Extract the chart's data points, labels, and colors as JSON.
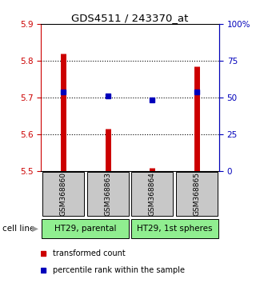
{
  "title": "GDS4511 / 243370_at",
  "samples": [
    "GSM368860",
    "GSM368863",
    "GSM368864",
    "GSM368865"
  ],
  "red_values": [
    5.82,
    5.615,
    5.51,
    5.785
  ],
  "blue_values": [
    5.715,
    5.705,
    5.693,
    5.715
  ],
  "ymin": 5.5,
  "ymax": 5.9,
  "y_ticks_left": [
    5.5,
    5.6,
    5.7,
    5.8,
    5.9
  ],
  "y_ticks_right": [
    0,
    25,
    50,
    75,
    100
  ],
  "y_ticks_right_labels": [
    "0",
    "25",
    "50",
    "75",
    "100%"
  ],
  "groups": [
    {
      "label": "HT29, parental",
      "color": "#90EE90"
    },
    {
      "label": "HT29, 1st spheres",
      "color": "#90EE90"
    }
  ],
  "cell_line_label": "cell line",
  "legend_red_label": "transformed count",
  "legend_blue_label": "percentile rank within the sample",
  "red_color": "#CC0000",
  "blue_color": "#0000BB",
  "sample_box_color": "#C8C8C8",
  "left_axis_color": "#CC0000",
  "right_axis_color": "#0000BB",
  "bar_linewidth": 5,
  "marker_size": 4.5
}
